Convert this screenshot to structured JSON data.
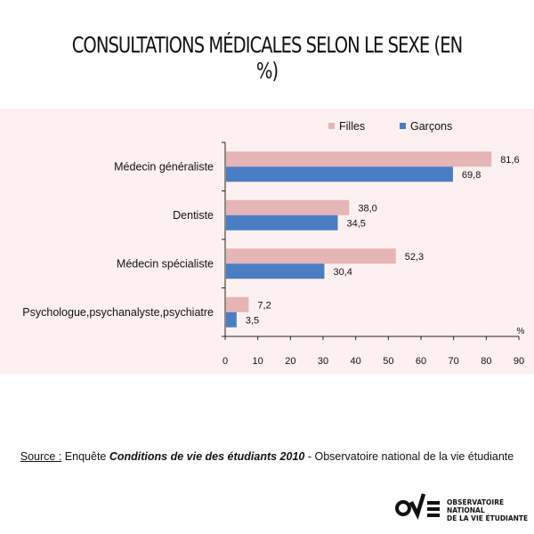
{
  "title": "CONSULTATIONS MÉDICALES SELON LE SEXE (EN %)",
  "colors": {
    "filles": "#e6b5b5",
    "garcons": "#4a7ec4",
    "background": "#fdf0f0"
  },
  "chart_data": {
    "type": "bar",
    "orientation": "horizontal",
    "categories": [
      "Médecin généraliste",
      "Dentiste",
      "Médecin spécialiste",
      "Psychologue,psychanalyste,psychiatre"
    ],
    "series": [
      {
        "name": "Filles",
        "values": [
          81.6,
          38.0,
          52.3,
          7.2
        ],
        "labels": [
          "81,6",
          "38,0",
          "52,3",
          "7,2"
        ]
      },
      {
        "name": "Garçons",
        "values": [
          69.8,
          34.5,
          30.4,
          3.5
        ],
        "labels": [
          "69,8",
          "34,5",
          "30,4",
          "3,5"
        ]
      }
    ],
    "xlim": [
      0,
      90
    ],
    "xticks": [
      0,
      10,
      20,
      30,
      40,
      50,
      60,
      70,
      80,
      90
    ],
    "xunit": "%",
    "legend": "top-right",
    "grid": false
  },
  "source": {
    "label": "Source :",
    "pre": " Enquête ",
    "title": "Conditions de vie des étudiants 2010",
    "post": " - Observatoire national de la vie étudiante"
  },
  "logo": {
    "line1": "OBSERVATOIRE NATIONAL",
    "line2": "DE LA VIE ÉTUDIANTE"
  }
}
